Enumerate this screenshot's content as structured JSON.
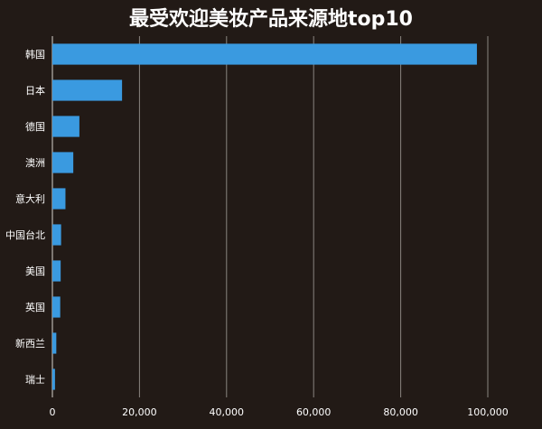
{
  "chart_data": {
    "type": "bar",
    "orientation": "horizontal",
    "title": "最受欢迎美妆产品来源地top10",
    "xlabel": "",
    "ylabel": "",
    "categories": [
      "韩国",
      "日本",
      "德国",
      "澳洲",
      "意大利",
      "中国台北",
      "美国",
      "英国",
      "新西兰",
      "瑞士"
    ],
    "values": [
      97500,
      16000,
      6200,
      4800,
      3000,
      2000,
      1900,
      1800,
      900,
      600
    ],
    "xlim": [
      0,
      100000
    ],
    "xticks": [
      0,
      20000,
      40000,
      60000,
      80000,
      100000
    ],
    "xtick_labels": [
      "0",
      "20,000",
      "40,000",
      "60,000",
      "80,000",
      "100,000"
    ],
    "grid": true,
    "legend": "none",
    "colors": {
      "bar": "#3a9ae0",
      "background": "#221a16",
      "grid": "#8a8580",
      "text": "#ffffff"
    }
  }
}
